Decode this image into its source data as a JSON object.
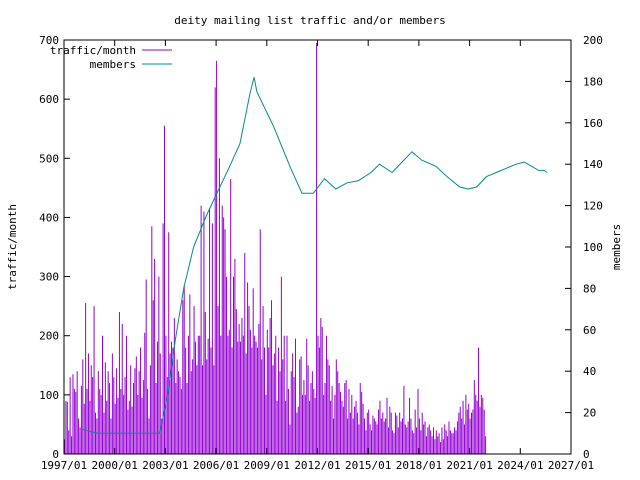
{
  "chart_data": {
    "type": "bar",
    "title": "deity mailing list traffic and/or members",
    "ylabel": "traffic/month",
    "y2label": "members",
    "xlim": [
      "1997-01",
      "2027-01"
    ],
    "ylim": [
      0,
      700
    ],
    "y2lim": [
      0,
      200
    ],
    "grid": false,
    "legend_position": "top-left",
    "x_ticks": [
      "1997/01",
      "2000/01",
      "2003/01",
      "2006/01",
      "2009/01",
      "2012/01",
      "2015/01",
      "2018/01",
      "2021/01",
      "2024/01",
      "2027/01"
    ],
    "y_ticks": [
      0,
      100,
      200,
      300,
      400,
      500,
      600,
      700
    ],
    "y2_ticks": [
      0,
      20,
      40,
      60,
      80,
      100,
      120,
      140,
      160,
      180,
      200
    ],
    "series": [
      {
        "name": "traffic/month",
        "type": "bar",
        "axis": "y",
        "color": "#9400d3",
        "start": "1997-01",
        "values": [
          25,
          90,
          88,
          40,
          130,
          30,
          135,
          110,
          105,
          140,
          60,
          45,
          115,
          160,
          85,
          255,
          110,
          170,
          90,
          150,
          130,
          250,
          70,
          60,
          140,
          110,
          100,
          200,
          70,
          155,
          90,
          140,
          120,
          60,
          170,
          130,
          85,
          145,
          95,
          240,
          110,
          220,
          100,
          130,
          200,
          75,
          90,
          150,
          80,
          120,
          145,
          165,
          100,
          140,
          180,
          95,
          125,
          205,
          295,
          110,
          60,
          150,
          385,
          260,
          330,
          120,
          190,
          300,
          170,
          60,
          390,
          555,
          200,
          130,
          375,
          170,
          190,
          180,
          230,
          120,
          160,
          140,
          130,
          110,
          260,
          285,
          180,
          120,
          200,
          270,
          140,
          160,
          250,
          190,
          150,
          200,
          200,
          420,
          150,
          410,
          240,
          160,
          195,
          415,
          180,
          390,
          150,
          620,
          665,
          250,
          500,
          200,
          420,
          400,
          380,
          300,
          200,
          210,
          465,
          180,
          300,
          330,
          245,
          190,
          220,
          190,
          230,
          200,
          340,
          170,
          290,
          250,
          210,
          180,
          280,
          200,
          190,
          180,
          220,
          380,
          160,
          250,
          180,
          100,
          210,
          180,
          230,
          260,
          150,
          170,
          200,
          90,
          180,
          140,
          300,
          160,
          200,
          90,
          200,
          110,
          50,
          140,
          170,
          130,
          195,
          70,
          80,
          160,
          165,
          100,
          125,
          100,
          195,
          150,
          90,
          120,
          140,
          110,
          95,
          695,
          200,
          180,
          230,
          215,
          100,
          120,
          200,
          160,
          150,
          90,
          115,
          60,
          100,
          160,
          140,
          120,
          105,
          90,
          80,
          120,
          125,
          60,
          110,
          70,
          100,
          60,
          80,
          90,
          70,
          50,
          120,
          105,
          85,
          60,
          40,
          70,
          75,
          50,
          40,
          65,
          60,
          55,
          50,
          75,
          90,
          60,
          70,
          55,
          60,
          95,
          45,
          80,
          70,
          40,
          35,
          70,
          65,
          45,
          70,
          55,
          60,
          115,
          50,
          45,
          55,
          95,
          60,
          40,
          35,
          75,
          45,
          110,
          60,
          40,
          70,
          50,
          55,
          30,
          45,
          50,
          40,
          30,
          45,
          25,
          40,
          30,
          35,
          20,
          45,
          25,
          50,
          40,
          30,
          55,
          40,
          35,
          35,
          45,
          40,
          55,
          70,
          80,
          60,
          90,
          50,
          100,
          75,
          85,
          60,
          70,
          75,
          125,
          100,
          90,
          180,
          80,
          100,
          95,
          75,
          30
        ]
      },
      {
        "name": "members",
        "type": "line",
        "axis": "y2",
        "color": "#008b8b",
        "points": [
          [
            "1998-01",
            12
          ],
          [
            "1999-01",
            10
          ],
          [
            "2001-01",
            10
          ],
          [
            "2002-09",
            10
          ],
          [
            "2003-03",
            30
          ],
          [
            "2003-08",
            55
          ],
          [
            "2004-02",
            80
          ],
          [
            "2004-09",
            100
          ],
          [
            "2005-06",
            115
          ],
          [
            "2006-03",
            128
          ],
          [
            "2006-10",
            138
          ],
          [
            "2007-06",
            150
          ],
          [
            "2008-01",
            174
          ],
          [
            "2008-04",
            182
          ],
          [
            "2008-06",
            175
          ],
          [
            "2009-06",
            158
          ],
          [
            "2010-06",
            138
          ],
          [
            "2011-02",
            126
          ],
          [
            "2011-10",
            126
          ],
          [
            "2012-06",
            133
          ],
          [
            "2013-02",
            128
          ],
          [
            "2013-10",
            131
          ],
          [
            "2014-06",
            132
          ],
          [
            "2015-03",
            136
          ],
          [
            "2015-09",
            140
          ],
          [
            "2016-06",
            136
          ],
          [
            "2017-01",
            141
          ],
          [
            "2017-08",
            146
          ],
          [
            "2018-03",
            142
          ],
          [
            "2019-01",
            139
          ],
          [
            "2019-09",
            134
          ],
          [
            "2020-06",
            129
          ],
          [
            "2020-12",
            128
          ],
          [
            "2021-06",
            129
          ],
          [
            "2022-01",
            134
          ],
          [
            "2022-08",
            136
          ],
          [
            "2023-03",
            138
          ],
          [
            "2023-10",
            140
          ],
          [
            "2024-04",
            141
          ],
          [
            "2024-09",
            139
          ],
          [
            "2025-02",
            137
          ],
          [
            "2025-06",
            137
          ],
          [
            "2025-08",
            136
          ]
        ]
      }
    ]
  }
}
